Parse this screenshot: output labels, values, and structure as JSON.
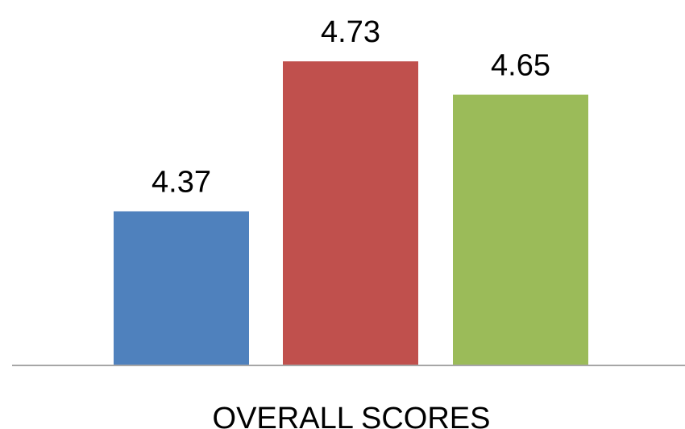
{
  "chart_data": {
    "type": "bar",
    "categories": [
      "OVERALL SCORES"
    ],
    "series": [
      {
        "values": [
          4.37
        ],
        "color": "#4F81BD"
      },
      {
        "values": [
          4.73
        ],
        "color": "#C0504D"
      },
      {
        "values": [
          4.65
        ],
        "color": "#9BBB59"
      }
    ],
    "data_labels": [
      "4.37",
      "4.73",
      "4.65"
    ],
    "ylim": [
      4.0,
      4.8
    ],
    "grid": false,
    "legend": "none",
    "axis_color": "#A6A6A6"
  }
}
